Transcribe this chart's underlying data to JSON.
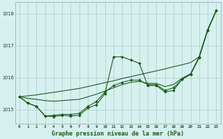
{
  "title": "Graphe pression niveau de la mer (hPa)",
  "bg_color": "#d6f0f0",
  "grid_color": "#b0c8c8",
  "line_color": "#1a5c1a",
  "marker_color": "#1a5c1a",
  "xlabel_color": "#1a5c1a",
  "x_ticks": [
    0,
    1,
    2,
    3,
    4,
    5,
    6,
    7,
    8,
    9,
    10,
    11,
    12,
    13,
    14,
    15,
    16,
    17,
    18,
    19,
    20,
    21,
    22,
    23
  ],
  "ylim": [
    1014.55,
    1018.35
  ],
  "yticks": [
    1015,
    1016,
    1017,
    1018
  ],
  "y_main": [
    1015.4,
    1015.2,
    1015.1,
    1014.8,
    1014.78,
    1014.82,
    1014.8,
    1014.82,
    1015.05,
    1015.15,
    1015.5,
    1016.65,
    1016.65,
    1016.55,
    1016.45,
    1015.75,
    1015.75,
    1015.55,
    1015.6,
    1015.95,
    1016.1,
    1016.65,
    1017.5,
    1018.1
  ],
  "y_trend": [
    1015.4,
    1015.2,
    1015.1,
    1014.8,
    1014.82,
    1014.85,
    1014.85,
    1014.88,
    1015.1,
    1015.25,
    1015.55,
    1015.75,
    1015.85,
    1015.92,
    1015.92,
    1015.78,
    1015.78,
    1015.6,
    1015.68,
    1015.95,
    1016.1,
    1016.62,
    1017.48,
    1018.1
  ],
  "y_linear": [
    1015.4,
    1015.43,
    1015.46,
    1015.5,
    1015.54,
    1015.58,
    1015.62,
    1015.66,
    1015.72,
    1015.78,
    1015.84,
    1015.9,
    1015.97,
    1016.03,
    1016.09,
    1016.15,
    1016.21,
    1016.27,
    1016.34,
    1016.4,
    1016.47,
    1016.65,
    1017.48,
    1018.1
  ],
  "y_smooth": [
    1015.4,
    1015.35,
    1015.32,
    1015.28,
    1015.26,
    1015.28,
    1015.3,
    1015.32,
    1015.4,
    1015.48,
    1015.58,
    1015.68,
    1015.78,
    1015.85,
    1015.88,
    1015.82,
    1015.82,
    1015.72,
    1015.78,
    1015.98,
    1016.12,
    1016.65,
    1017.5,
    1018.1
  ]
}
